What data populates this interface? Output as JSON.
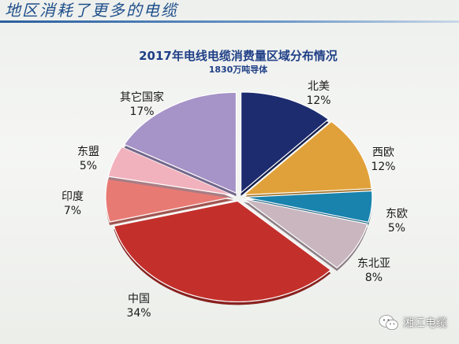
{
  "header": {
    "title": "地区消耗了更多的电缆"
  },
  "colors": {
    "north_america": "#1c2c6e",
    "western_europe": "#e1a13a",
    "eastern_europe": "#1983ae",
    "northeast_asia": "#c9b6bf",
    "china": "#c3302c",
    "india": "#e87a74",
    "asean": "#f1b2bd",
    "other_countries": "#a693c7"
  },
  "chart_data": {
    "type": "pie",
    "title": "2017年电线电缆消费量区域分布情况",
    "subtitle": "1830万吨导体",
    "start_angle_deg": 0,
    "direction": "clockwise",
    "exploded": true,
    "slices": [
      {
        "label": "北美",
        "value": 12,
        "value_label": "12%",
        "color": "#1c2c6e"
      },
      {
        "label": "西欧",
        "value": 12,
        "value_label": "12%",
        "color": "#e1a13a"
      },
      {
        "label": "东欧",
        "value": 5,
        "value_label": "5%",
        "color": "#1983ae"
      },
      {
        "label": "东北亚",
        "value": 8,
        "value_label": "8%",
        "color": "#c9b6bf"
      },
      {
        "label": "中国",
        "value": 34,
        "value_label": "34%",
        "color": "#c3302c"
      },
      {
        "label": "印度",
        "value": 7,
        "value_label": "7%",
        "color": "#e87a74"
      },
      {
        "label": "东盟",
        "value": 5,
        "value_label": "5%",
        "color": "#f1b2bd"
      },
      {
        "label": "其它国家",
        "value": 17,
        "value_label": "17%",
        "color": "#a693c7"
      }
    ]
  },
  "watermark": {
    "text": "湘江电缆",
    "icon": "wechat-icon"
  }
}
